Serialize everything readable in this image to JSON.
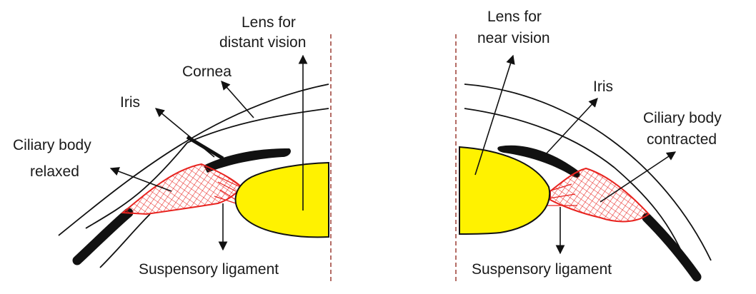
{
  "left_panel": {
    "lens_label_line1": "Lens for",
    "lens_label_line2": "distant vision",
    "cornea_label": "Cornea",
    "iris_label": "Iris",
    "ciliary_label_line1": "Ciliary body",
    "ciliary_label_line2": "relaxed",
    "ligament_label": "Suspensory ligament"
  },
  "right_panel": {
    "lens_label_line1": "Lens for",
    "lens_label_line2": "near vision",
    "iris_label": "Iris",
    "ciliary_label_line1": "Ciliary body",
    "ciliary_label_line2": "contracted",
    "ligament_label": "Suspensory ligament"
  },
  "colors": {
    "lens_fill": "#fff200",
    "ciliary_body": "#e8231f",
    "outline": "#111111",
    "axis": "#9b3b32"
  }
}
